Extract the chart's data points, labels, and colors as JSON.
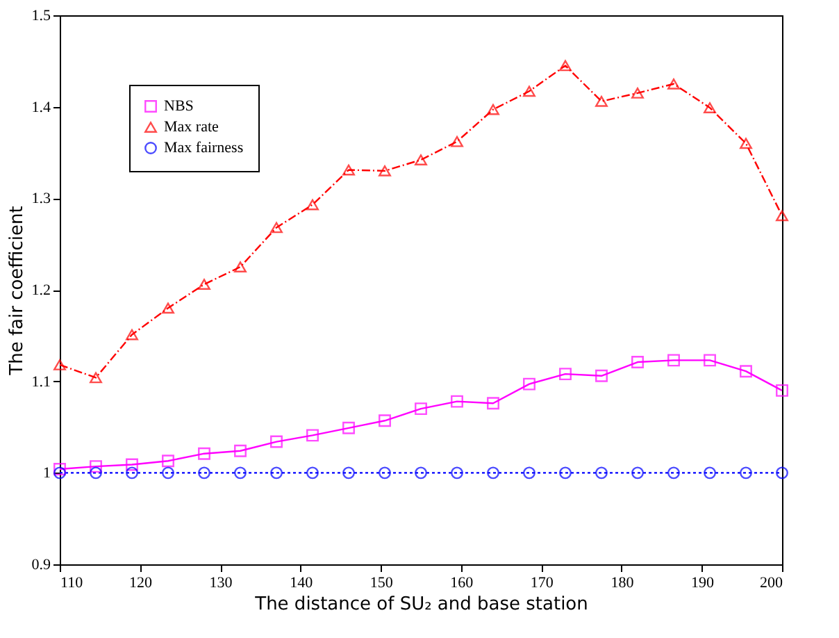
{
  "chart_data": {
    "type": "line",
    "xlabel": "The distance of SU₂ and base station",
    "ylabel": "The fair coefficient",
    "x": [
      110,
      114.5,
      119,
      123.5,
      128,
      132.5,
      137,
      141.5,
      146,
      150.5,
      155,
      159.5,
      164,
      168.5,
      173,
      177.5,
      182,
      186.5,
      191,
      195.5,
      200
    ],
    "series": [
      {
        "name": "NBS",
        "color": "#ff00ff",
        "marker": "square",
        "line_style": "solid",
        "values": [
          1.004,
          1.007,
          1.009,
          1.013,
          1.021,
          1.024,
          1.034,
          1.041,
          1.049,
          1.057,
          1.07,
          1.078,
          1.076,
          1.097,
          1.108,
          1.106,
          1.121,
          1.123,
          1.123,
          1.111,
          1.09
        ]
      },
      {
        "name": "Max rate",
        "color": "#ff0000",
        "marker": "triangle",
        "line_style": "dashed",
        "values": [
          1.118,
          1.104,
          1.151,
          1.18,
          1.206,
          1.225,
          1.268,
          1.293,
          1.331,
          1.33,
          1.342,
          1.362,
          1.397,
          1.417,
          1.445,
          1.406,
          1.415,
          1.425,
          1.399,
          1.36,
          1.281
        ]
      },
      {
        "name": "Max fairness",
        "color": "#0000ff",
        "marker": "circle",
        "line_style": "dotted",
        "values": [
          1.0,
          1.0,
          1.0,
          1.0,
          1.0,
          1.0,
          1.0,
          1.0,
          1.0,
          1.0,
          1.0,
          1.0,
          1.0,
          1.0,
          1.0,
          1.0,
          1.0,
          1.0,
          1.0,
          1.0,
          1.0
        ]
      }
    ],
    "xlim": [
      110,
      200
    ],
    "xticks": [
      110,
      120,
      130,
      140,
      150,
      160,
      170,
      180,
      190,
      200
    ],
    "ylim": [
      0.9,
      1.5
    ],
    "yticks": [
      0.9,
      1,
      1.1,
      1.2,
      1.3,
      1.4,
      1.5
    ],
    "grid": false,
    "legend": "top left"
  }
}
